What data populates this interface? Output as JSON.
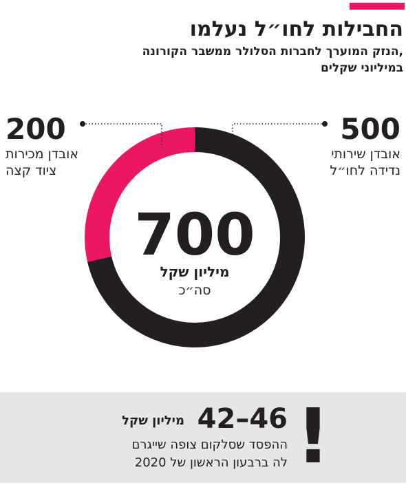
{
  "chart_data": {
    "type": "donut",
    "title": "החבילות לחו״ל נעלמו",
    "subtitle": [
      "הנזק המוערך לחברות הסלולר ממשבר הקורונה,",
      "במיליוני שקלים"
    ],
    "series": [
      {
        "name": [
          "אובדן שירותי",
          "נדידה לחו״ל"
        ],
        "color": "#231f20",
        "value": 500
      },
      {
        "name": [
          "אובדן מכירות",
          "ציוד קצה"
        ],
        "color": "#ec1763",
        "value": 200
      }
    ],
    "total": 700,
    "total_unit": "מיליון שקל",
    "total_label": "סה״כ",
    "note": {
      "icon": "!",
      "range": "42–46",
      "unit": "מיליון שקל",
      "text": [
        "ההפסד שסלקום צופה שייגרם",
        "לה ברבעון הראשון של 2020"
      ]
    }
  }
}
